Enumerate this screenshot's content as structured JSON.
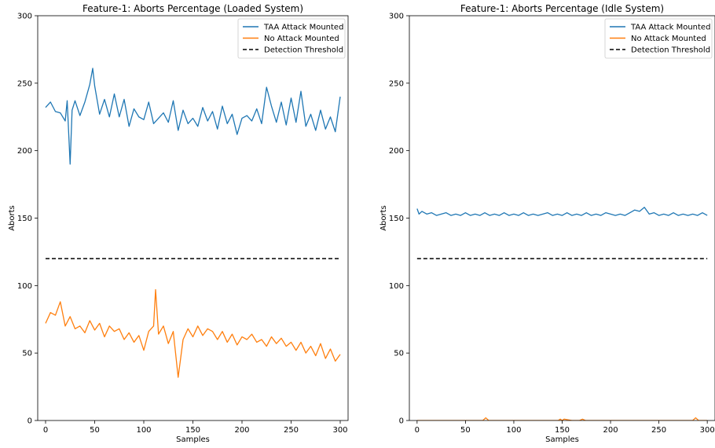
{
  "chart_data": [
    {
      "type": "line",
      "title": "Feature-1: Aborts Percentage (Loaded System)",
      "xlabel": "Samples",
      "ylabel": "Aborts",
      "xlim": [
        -8,
        308
      ],
      "ylim": [
        0,
        300
      ],
      "xticks": [
        0,
        50,
        100,
        150,
        200,
        250,
        300
      ],
      "yticks": [
        0,
        50,
        100,
        150,
        200,
        250,
        300
      ],
      "legend_position": "top-right",
      "grid": false,
      "series": [
        {
          "name": "TAA Attack Mounted",
          "color": "#1f77b4",
          "x": [
            0,
            5,
            10,
            15,
            20,
            22,
            25,
            27,
            30,
            35,
            40,
            45,
            48,
            50,
            55,
            60,
            65,
            70,
            75,
            80,
            85,
            90,
            95,
            100,
            105,
            110,
            115,
            120,
            125,
            130,
            135,
            140,
            145,
            150,
            155,
            160,
            165,
            170,
            175,
            180,
            185,
            190,
            195,
            200,
            205,
            210,
            215,
            220,
            225,
            230,
            235,
            240,
            245,
            250,
            255,
            260,
            265,
            270,
            275,
            280,
            285,
            290,
            295,
            300
          ],
          "values": [
            232,
            236,
            229,
            228,
            222,
            237,
            190,
            230,
            237,
            226,
            236,
            249,
            261,
            248,
            227,
            238,
            225,
            242,
            225,
            238,
            218,
            231,
            225,
            223,
            236,
            220,
            224,
            228,
            221,
            237,
            215,
            230,
            220,
            224,
            218,
            232,
            222,
            229,
            216,
            233,
            220,
            227,
            212,
            224,
            226,
            222,
            231,
            220,
            247,
            233,
            221,
            236,
            219,
            239,
            221,
            244,
            218,
            227,
            215,
            230,
            216,
            225,
            214,
            240
          ]
        },
        {
          "name": "No Attack Mounted",
          "color": "#ff7f0e",
          "x": [
            0,
            5,
            10,
            15,
            20,
            25,
            30,
            35,
            40,
            45,
            50,
            55,
            60,
            65,
            70,
            75,
            80,
            85,
            90,
            95,
            100,
            105,
            110,
            112,
            115,
            120,
            125,
            130,
            135,
            140,
            145,
            150,
            155,
            160,
            165,
            170,
            175,
            180,
            185,
            190,
            195,
            200,
            205,
            210,
            215,
            220,
            225,
            230,
            235,
            240,
            245,
            250,
            255,
            260,
            265,
            270,
            275,
            280,
            285,
            290,
            295,
            300
          ],
          "values": [
            72,
            80,
            78,
            88,
            70,
            77,
            68,
            70,
            65,
            74,
            67,
            72,
            62,
            70,
            66,
            68,
            60,
            65,
            58,
            63,
            52,
            66,
            70,
            97,
            64,
            70,
            57,
            66,
            32,
            60,
            68,
            62,
            70,
            63,
            68,
            66,
            60,
            66,
            58,
            64,
            56,
            62,
            60,
            64,
            58,
            60,
            55,
            62,
            57,
            61,
            55,
            58,
            52,
            58,
            50,
            55,
            48,
            57,
            46,
            53,
            44,
            49
          ]
        },
        {
          "name": "Detection Threshold",
          "color": "#000000",
          "dashed": true,
          "x": [
            0,
            300
          ],
          "values": [
            120,
            120
          ]
        }
      ]
    },
    {
      "type": "line",
      "title": "Feature-1: Aborts Percentage (Idle System)",
      "xlabel": "Samples",
      "ylabel": "Aborts",
      "xlim": [
        -8,
        308
      ],
      "ylim": [
        0,
        300
      ],
      "xticks": [
        0,
        50,
        100,
        150,
        200,
        250,
        300
      ],
      "yticks": [
        0,
        50,
        100,
        150,
        200,
        250,
        300
      ],
      "legend_position": "top-right",
      "grid": false,
      "series": [
        {
          "name": "TAA Attack Mounted",
          "color": "#1f77b4",
          "x": [
            0,
            2,
            5,
            10,
            15,
            20,
            25,
            30,
            35,
            40,
            45,
            50,
            55,
            60,
            65,
            70,
            75,
            80,
            85,
            90,
            95,
            100,
            105,
            110,
            115,
            120,
            125,
            130,
            135,
            140,
            145,
            150,
            155,
            160,
            165,
            170,
            175,
            180,
            185,
            190,
            195,
            200,
            205,
            210,
            215,
            220,
            225,
            230,
            235,
            240,
            245,
            250,
            255,
            260,
            265,
            270,
            275,
            280,
            285,
            290,
            295,
            300
          ],
          "values": [
            157,
            153,
            155,
            153,
            154,
            152,
            153,
            154,
            152,
            153,
            152,
            154,
            152,
            153,
            152,
            154,
            152,
            153,
            152,
            154,
            152,
            153,
            152,
            154,
            152,
            153,
            152,
            153,
            154,
            152,
            153,
            152,
            154,
            152,
            153,
            152,
            154,
            152,
            153,
            152,
            154,
            153,
            152,
            153,
            152,
            154,
            156,
            155,
            158,
            153,
            154,
            152,
            153,
            152,
            154,
            152,
            153,
            152,
            153,
            152,
            154,
            152
          ]
        },
        {
          "name": "No Attack Mounted",
          "color": "#ff7f0e",
          "x": [
            0,
            20,
            40,
            60,
            68,
            71,
            74,
            90,
            110,
            130,
            146,
            148,
            150,
            152,
            160,
            168,
            171,
            174,
            190,
            210,
            230,
            250,
            270,
            285,
            288,
            291,
            300
          ],
          "values": [
            0,
            0,
            0,
            0,
            0,
            2,
            0,
            0,
            0,
            0,
            0,
            1,
            0,
            1,
            0,
            0,
            1,
            0,
            0,
            0,
            0,
            0,
            0,
            0,
            2,
            0,
            0
          ]
        },
        {
          "name": "Detection Threshold",
          "color": "#000000",
          "dashed": true,
          "x": [
            0,
            300
          ],
          "values": [
            120,
            120
          ]
        }
      ]
    }
  ]
}
